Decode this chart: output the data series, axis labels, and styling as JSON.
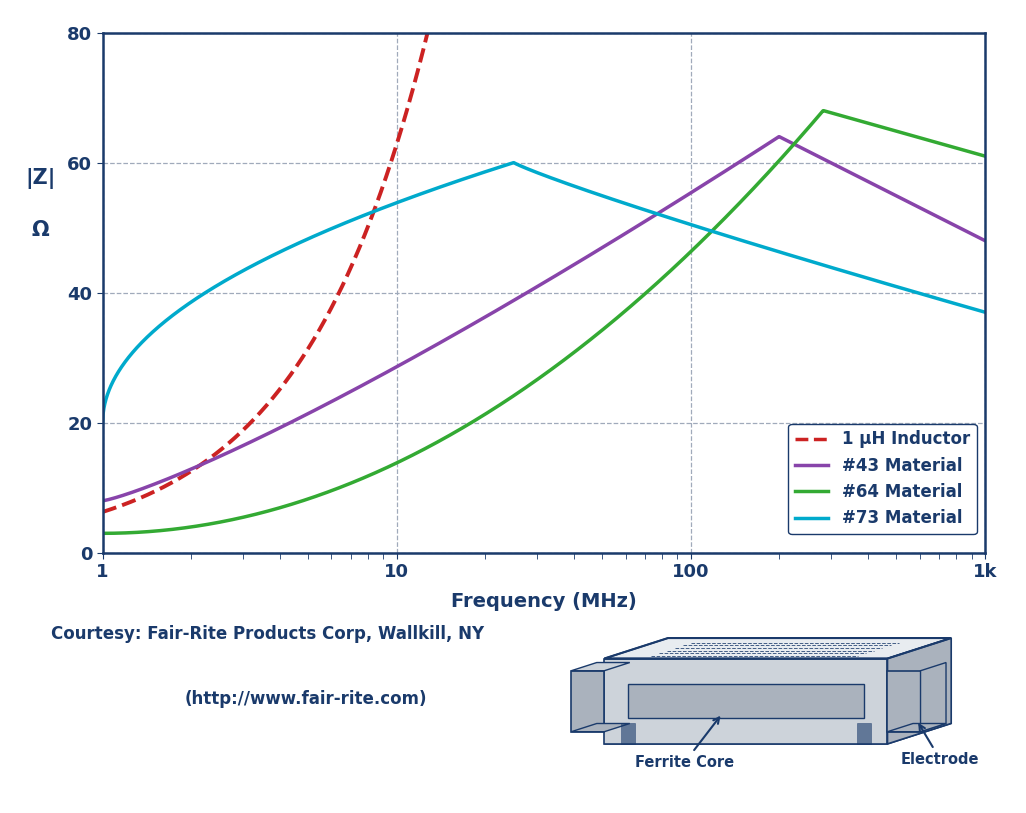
{
  "title": "",
  "xlabel": "Frequency (MHz)",
  "ylabel_line1": "|Z|",
  "ylabel_line2": "Ω",
  "ylim": [
    0,
    80
  ],
  "yticks": [
    0,
    20,
    40,
    60,
    80
  ],
  "xtick_labels": [
    "1",
    "10",
    "100",
    "1k"
  ],
  "xtick_vals": [
    1,
    10,
    100,
    1000
  ],
  "bg_color": "#ffffff",
  "plot_bg_color": "#ffffff",
  "border_color": "#1a3a6b",
  "grid_color": "#a0aabb",
  "text_color": "#1a3a6b",
  "inductor_color": "#cc2222",
  "mat43_color": "#8844aa",
  "mat64_color": "#33aa33",
  "mat73_color": "#00aacc",
  "legend_labels": [
    "1 μH Inductor",
    "#43 Material",
    "#64 Material",
    "#73 Material"
  ],
  "courtesy_line1": "Courtesy: Fair-Rite Products Corp, Wallkill, NY",
  "courtesy_line2": "(http://www.fair-rite.com)"
}
